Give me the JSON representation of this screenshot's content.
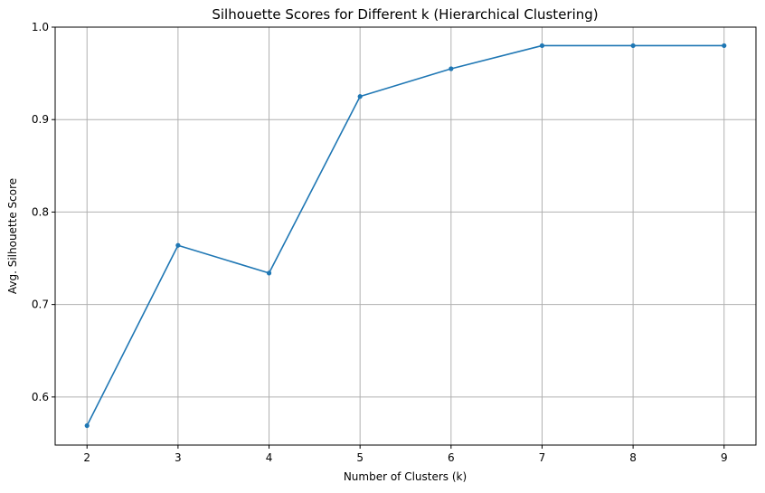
{
  "chart_data": {
    "type": "line",
    "title": "Silhouette Scores for Different k (Hierarchical Clustering)",
    "xlabel": "Number of Clusters (k)",
    "ylabel": "Avg. Silhouette Score",
    "x": [
      2,
      3,
      4,
      5,
      6,
      7,
      8,
      9
    ],
    "series": [
      {
        "values": [
          0.569,
          0.764,
          0.734,
          0.925,
          0.955,
          0.98,
          0.98,
          0.98
        ],
        "color": "#1f77b4",
        "marker": "circle"
      }
    ],
    "xlim": [
      1.65,
      9.35
    ],
    "ylim": [
      0.548,
      1.0
    ],
    "xticks": [
      2,
      3,
      4,
      5,
      6,
      7,
      8,
      9
    ],
    "xtick_labels": [
      "2",
      "3",
      "4",
      "5",
      "6",
      "7",
      "8",
      "9"
    ],
    "yticks": [
      0.6,
      0.7,
      0.8,
      0.9,
      1.0
    ],
    "ytick_labels": [
      "0.6",
      "0.7",
      "0.8",
      "0.9",
      "1.0"
    ],
    "grid": true,
    "legend": "none"
  }
}
